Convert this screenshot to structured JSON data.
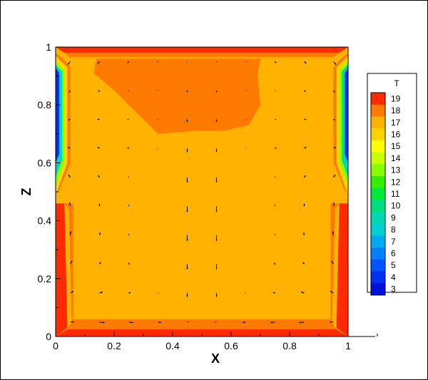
{
  "chart_data": {
    "type": "heatmap",
    "subtype": "contour-with-vectors",
    "title": "",
    "xlabel": "X",
    "ylabel": "Z",
    "xlim": [
      0,
      1
    ],
    "ylim": [
      0,
      1
    ],
    "x_ticks": [
      "0",
      "0.2",
      "0.4",
      "0.6",
      "0.8",
      "1"
    ],
    "y_ticks": [
      "0",
      "0.2",
      "0.4",
      "0.6",
      "0.8",
      "1"
    ],
    "grid": false,
    "background_level": 17,
    "legend": {
      "title": "T",
      "placement": "right",
      "levels": [
        19,
        18,
        17,
        16,
        15,
        14,
        13,
        12,
        11,
        10,
        9,
        8,
        7,
        6,
        5,
        4,
        3
      ],
      "colors": [
        "#ff2a00",
        "#ff7a00",
        "#ffb300",
        "#ffd200",
        "#ffff00",
        "#c8ff00",
        "#88ff00",
        "#33ee00",
        "#00e83a",
        "#00dd80",
        "#00d8b0",
        "#00d0d0",
        "#00aaee",
        "#0080ff",
        "#0055ff",
        "#0030f0",
        "#0010d8"
      ]
    },
    "regions": [
      {
        "level": 18,
        "boundary": [
          [
            0.14,
            0.96
          ],
          [
            0.13,
            0.91
          ],
          [
            0.2,
            0.85
          ],
          [
            0.27,
            0.78
          ],
          [
            0.35,
            0.7
          ],
          [
            0.47,
            0.71
          ],
          [
            0.57,
            0.71
          ],
          [
            0.66,
            0.73
          ],
          [
            0.7,
            0.8
          ],
          [
            0.69,
            0.9
          ],
          [
            0.7,
            0.96
          ]
        ]
      },
      {
        "level": 19,
        "boundary": [
          [
            0.0,
            1.0
          ],
          [
            1.0,
            1.0
          ],
          [
            0.97,
            0.98
          ],
          [
            0.03,
            0.98
          ]
        ]
      },
      {
        "level": 18,
        "boundary": [
          [
            0.03,
            0.98
          ],
          [
            0.97,
            0.98
          ],
          [
            0.95,
            0.965
          ],
          [
            0.05,
            0.965
          ]
        ]
      },
      {
        "level": 19,
        "boundary": [
          [
            0.0,
            0.46
          ],
          [
            0.03,
            0.46
          ],
          [
            0.04,
            0.03
          ],
          [
            0.0,
            0.0
          ]
        ]
      },
      {
        "level": 19,
        "boundary": [
          [
            1.0,
            0.46
          ],
          [
            0.97,
            0.46
          ],
          [
            0.96,
            0.03
          ],
          [
            1.0,
            0.0
          ]
        ]
      },
      {
        "level": 19,
        "boundary": [
          [
            0.0,
            0.0
          ],
          [
            1.0,
            0.0
          ],
          [
            0.96,
            0.025
          ],
          [
            0.04,
            0.025
          ]
        ]
      },
      {
        "level": 18,
        "boundary": [
          [
            0.03,
            0.46
          ],
          [
            0.045,
            0.44
          ],
          [
            0.055,
            0.05
          ],
          [
            0.04,
            0.025
          ],
          [
            0.96,
            0.025
          ],
          [
            0.945,
            0.05
          ],
          [
            0.955,
            0.44
          ],
          [
            0.97,
            0.46
          ],
          [
            0.94,
            0.46
          ],
          [
            0.94,
            0.06
          ],
          [
            0.06,
            0.06
          ],
          [
            0.06,
            0.46
          ]
        ]
      },
      {
        "level": 18,
        "boundary": [
          [
            0.0,
            0.98
          ],
          [
            0.025,
            0.96
          ],
          [
            0.05,
            0.93
          ],
          [
            0.05,
            0.6
          ],
          [
            0.01,
            0.5
          ],
          [
            0.0,
            0.5
          ]
        ]
      },
      {
        "level": 18,
        "boundary": [
          [
            1.0,
            0.98
          ],
          [
            0.975,
            0.96
          ],
          [
            0.95,
            0.93
          ],
          [
            0.95,
            0.6
          ],
          [
            0.99,
            0.5
          ],
          [
            1.0,
            0.5
          ]
        ]
      },
      {
        "level": 16,
        "boundary": [
          [
            0.0,
            0.97
          ],
          [
            0.04,
            0.93
          ],
          [
            0.04,
            0.6
          ],
          [
            0.005,
            0.5
          ],
          [
            0.0,
            0.5
          ]
        ]
      },
      {
        "level": 16,
        "boundary": [
          [
            1.0,
            0.97
          ],
          [
            0.96,
            0.93
          ],
          [
            0.96,
            0.6
          ],
          [
            0.995,
            0.5
          ],
          [
            1.0,
            0.5
          ]
        ]
      },
      {
        "level": 13,
        "boundary": [
          [
            0.0,
            0.95
          ],
          [
            0.03,
            0.92
          ],
          [
            0.03,
            0.6
          ],
          [
            0.0,
            0.52
          ]
        ]
      },
      {
        "level": 13,
        "boundary": [
          [
            1.0,
            0.95
          ],
          [
            0.97,
            0.92
          ],
          [
            0.97,
            0.6
          ],
          [
            1.0,
            0.52
          ]
        ]
      },
      {
        "level": 9,
        "boundary": [
          [
            0.0,
            0.94
          ],
          [
            0.022,
            0.915
          ],
          [
            0.022,
            0.61
          ],
          [
            0.0,
            0.55
          ]
        ]
      },
      {
        "level": 9,
        "boundary": [
          [
            1.0,
            0.94
          ],
          [
            0.978,
            0.915
          ],
          [
            0.978,
            0.61
          ],
          [
            1.0,
            0.55
          ]
        ]
      },
      {
        "level": 4,
        "boundary": [
          [
            0.0,
            0.93
          ],
          [
            0.012,
            0.91
          ],
          [
            0.012,
            0.63
          ],
          [
            0.0,
            0.6
          ]
        ]
      },
      {
        "level": 4,
        "boundary": [
          [
            1.0,
            0.93
          ],
          [
            0.988,
            0.91
          ],
          [
            0.988,
            0.63
          ],
          [
            1.0,
            0.6
          ]
        ]
      }
    ],
    "vectors": {
      "x": [
        0.05,
        0.15,
        0.25,
        0.35,
        0.45,
        0.55,
        0.65,
        0.75,
        0.85,
        0.95
      ],
      "z": [
        0.05,
        0.15,
        0.25,
        0.35,
        0.45,
        0.55,
        0.65,
        0.75,
        0.85,
        0.95
      ],
      "u": [
        [
          0.6,
          0.8,
          0.7,
          0.5,
          0.2,
          -0.2,
          -0.5,
          -0.7,
          -0.8,
          -0.6
        ],
        [
          0.5,
          0.5,
          0.3,
          0.1,
          0.0,
          0.0,
          -0.1,
          -0.3,
          -0.5,
          -0.5
        ],
        [
          0.3,
          0.2,
          0.1,
          0.0,
          0.0,
          0.0,
          0.0,
          -0.1,
          -0.2,
          -0.3
        ],
        [
          0.1,
          0.1,
          0.0,
          0.0,
          0.0,
          0.0,
          0.0,
          0.0,
          -0.1,
          -0.1
        ],
        [
          -0.1,
          0.0,
          0.0,
          0.0,
          0.0,
          0.0,
          0.0,
          0.0,
          0.0,
          0.1
        ],
        [
          -0.3,
          -0.2,
          -0.1,
          0.0,
          0.0,
          0.0,
          0.0,
          0.1,
          0.2,
          0.3
        ],
        [
          -0.4,
          -0.3,
          -0.2,
          -0.1,
          0.0,
          0.0,
          0.1,
          0.2,
          0.3,
          0.4
        ],
        [
          -0.3,
          -0.3,
          -0.2,
          -0.1,
          0.0,
          0.0,
          0.1,
          0.2,
          0.3,
          0.3
        ],
        [
          -0.2,
          -0.2,
          -0.1,
          -0.1,
          0.0,
          0.0,
          0.1,
          0.1,
          0.2,
          0.2
        ],
        [
          -0.4,
          -0.3,
          -0.2,
          -0.1,
          0.0,
          0.0,
          0.1,
          0.2,
          0.3,
          0.4
        ]
      ],
      "w": [
        [
          0.0,
          -0.1,
          -0.1,
          -0.1,
          0.0,
          0.0,
          -0.1,
          -0.1,
          -0.1,
          0.0
        ],
        [
          0.3,
          0.2,
          0.1,
          0.0,
          -0.6,
          -0.6,
          0.0,
          0.1,
          0.2,
          0.3
        ],
        [
          0.5,
          0.3,
          0.2,
          0.0,
          -0.8,
          -0.8,
          0.0,
          0.2,
          0.3,
          0.5
        ],
        [
          0.6,
          0.4,
          0.2,
          0.0,
          -0.9,
          -0.9,
          0.0,
          0.2,
          0.4,
          0.6
        ],
        [
          0.6,
          0.4,
          0.2,
          0.0,
          -0.9,
          -0.9,
          0.0,
          0.2,
          0.4,
          0.6
        ],
        [
          0.4,
          0.3,
          0.1,
          0.0,
          -0.8,
          -0.8,
          0.0,
          0.1,
          0.3,
          0.4
        ],
        [
          0.2,
          0.2,
          0.1,
          0.0,
          -0.6,
          -0.6,
          0.0,
          0.1,
          0.2,
          0.2
        ],
        [
          -0.1,
          0.0,
          0.0,
          0.0,
          -0.4,
          -0.4,
          0.0,
          0.0,
          0.0,
          -0.1
        ],
        [
          -0.3,
          -0.2,
          -0.1,
          0.0,
          -0.3,
          -0.3,
          0.0,
          -0.1,
          -0.2,
          -0.3
        ],
        [
          -0.5,
          -0.3,
          -0.2,
          -0.1,
          -0.1,
          -0.1,
          -0.1,
          -0.2,
          -0.3,
          -0.5
        ]
      ]
    }
  }
}
